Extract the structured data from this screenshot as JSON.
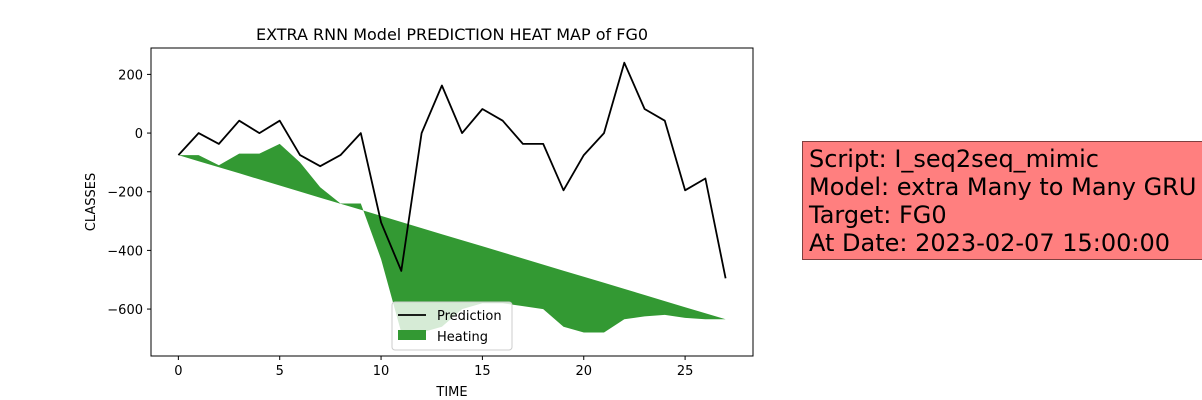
{
  "chart_data": {
    "type": "line",
    "title": "EXTRA RNN Model PREDICTION HEAT MAP of FG0",
    "xlabel": "TIME",
    "ylabel": "CLASSES",
    "xlim": [
      -1.35,
      28.35
    ],
    "ylim": [
      -760,
      290
    ],
    "xticks": [
      0,
      5,
      10,
      15,
      20,
      25
    ],
    "yticks": [
      200,
      0,
      -200,
      -400,
      -600
    ],
    "ytick_labels": [
      "200",
      "0",
      "−200",
      "−400",
      "−600"
    ],
    "grid": false,
    "legend_position": "lower center",
    "x": [
      0,
      1,
      2,
      3,
      4,
      5,
      6,
      7,
      8,
      9,
      10,
      11,
      12,
      13,
      14,
      15,
      16,
      17,
      18,
      19,
      20,
      21,
      22,
      23,
      24,
      25,
      26,
      27
    ],
    "series": [
      {
        "name": "Prediction",
        "color": "#000000",
        "values": [
          -75,
          0,
          -37,
          42,
          0,
          42,
          -75,
          -113,
          -75,
          0,
          -305,
          -470,
          0,
          162,
          0,
          82,
          42,
          -37,
          -37,
          -195,
          -75,
          0,
          240,
          82,
          42,
          -195,
          -155,
          -495
        ]
      }
    ],
    "fill": {
      "name": "Heating",
      "color": "#339933",
      "upper": [
        -75,
        -75,
        -110,
        -70,
        -70,
        -37,
        -100,
        -185,
        -240,
        -240,
        -430,
        -680,
        -680,
        -660,
        -600,
        -580,
        -580,
        -590,
        -600,
        -660,
        -680,
        -680,
        -635,
        -625,
        -620,
        -630,
        -635,
        -635
      ],
      "lower_start": -75,
      "lower_end": -635
    },
    "legend": [
      "Prediction",
      "Heating"
    ]
  },
  "info_box": {
    "lines": [
      "Script: I_seq2seq_mimic",
      "Model: extra Many to Many GRU",
      "Target: FG0",
      "At Date: 2023-02-07 15:00:00"
    ],
    "background": "#ff7f7f"
  }
}
